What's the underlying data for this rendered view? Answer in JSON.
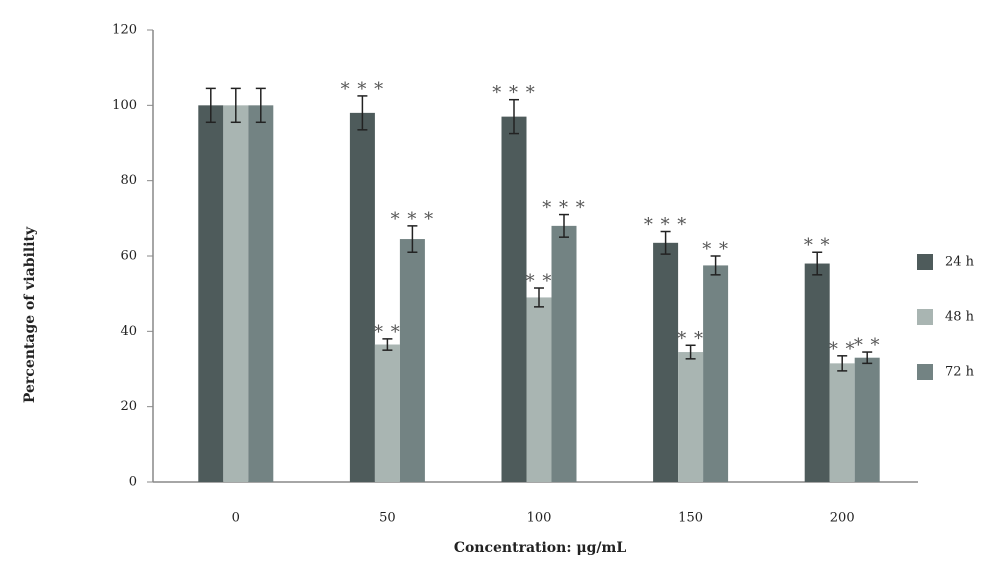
{
  "chart_data": {
    "type": "bar",
    "x_label": "Concentration: μg/mL",
    "y_label": "Percentage of viability",
    "categories": [
      "0",
      "50",
      "100",
      "150",
      "200"
    ],
    "series": [
      {
        "name": "24 h",
        "color": "#4e5b5b",
        "values": [
          100,
          98,
          97,
          63.5,
          58
        ],
        "errors": [
          4.5,
          4.5,
          4.5,
          3,
          3
        ],
        "stars": [
          null,
          "* * *",
          "* * *",
          "* * *",
          "* *"
        ]
      },
      {
        "name": "48 h",
        "color": "#a9b5b2",
        "values": [
          100,
          36.5,
          49,
          34.5,
          31.5
        ],
        "errors": [
          4.5,
          1.5,
          2.5,
          1.8,
          2
        ],
        "stars": [
          null,
          "* *",
          "* *",
          "* *",
          "* *"
        ]
      },
      {
        "name": "72 h",
        "color": "#738383",
        "values": [
          100,
          64.5,
          68,
          57.5,
          33
        ],
        "errors": [
          4.5,
          3.5,
          3,
          2.5,
          1.5
        ],
        "stars": [
          null,
          "* * *",
          "* * *",
          "* *",
          "* *"
        ]
      }
    ],
    "ylim": [
      0,
      120
    ],
    "yticks": [
      0,
      20,
      40,
      60,
      80,
      100,
      120
    ]
  }
}
